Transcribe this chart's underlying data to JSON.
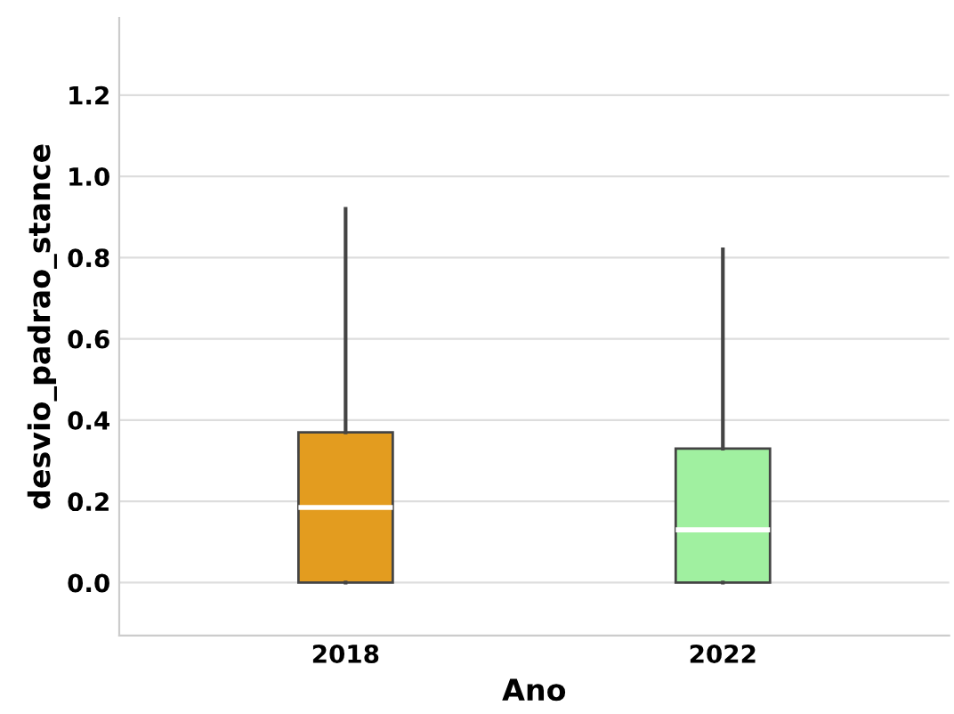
{
  "chart_data": {
    "type": "box",
    "xlabel": "Ano",
    "ylabel": "desvio_padrao_stance",
    "categories": [
      "2018",
      "2022"
    ],
    "boxes": [
      {
        "low": 0,
        "q1": 0,
        "median": 0.185,
        "q3": 0.37,
        "high": 0.92
      },
      {
        "low": 0,
        "q1": 0,
        "median": 0.13,
        "q3": 0.33,
        "high": 0.82
      }
    ],
    "colors": [
      "#e39c1f",
      "#a0f0a0"
    ],
    "ylim": [
      -0.13,
      1.39
    ],
    "yticks": [
      {
        "value": 0,
        "label": "0.0"
      },
      0.2,
      0.4,
      0.6,
      0.8,
      {
        "value": 1,
        "label": "1.0"
      },
      1.2
    ],
    "grid": "y"
  }
}
